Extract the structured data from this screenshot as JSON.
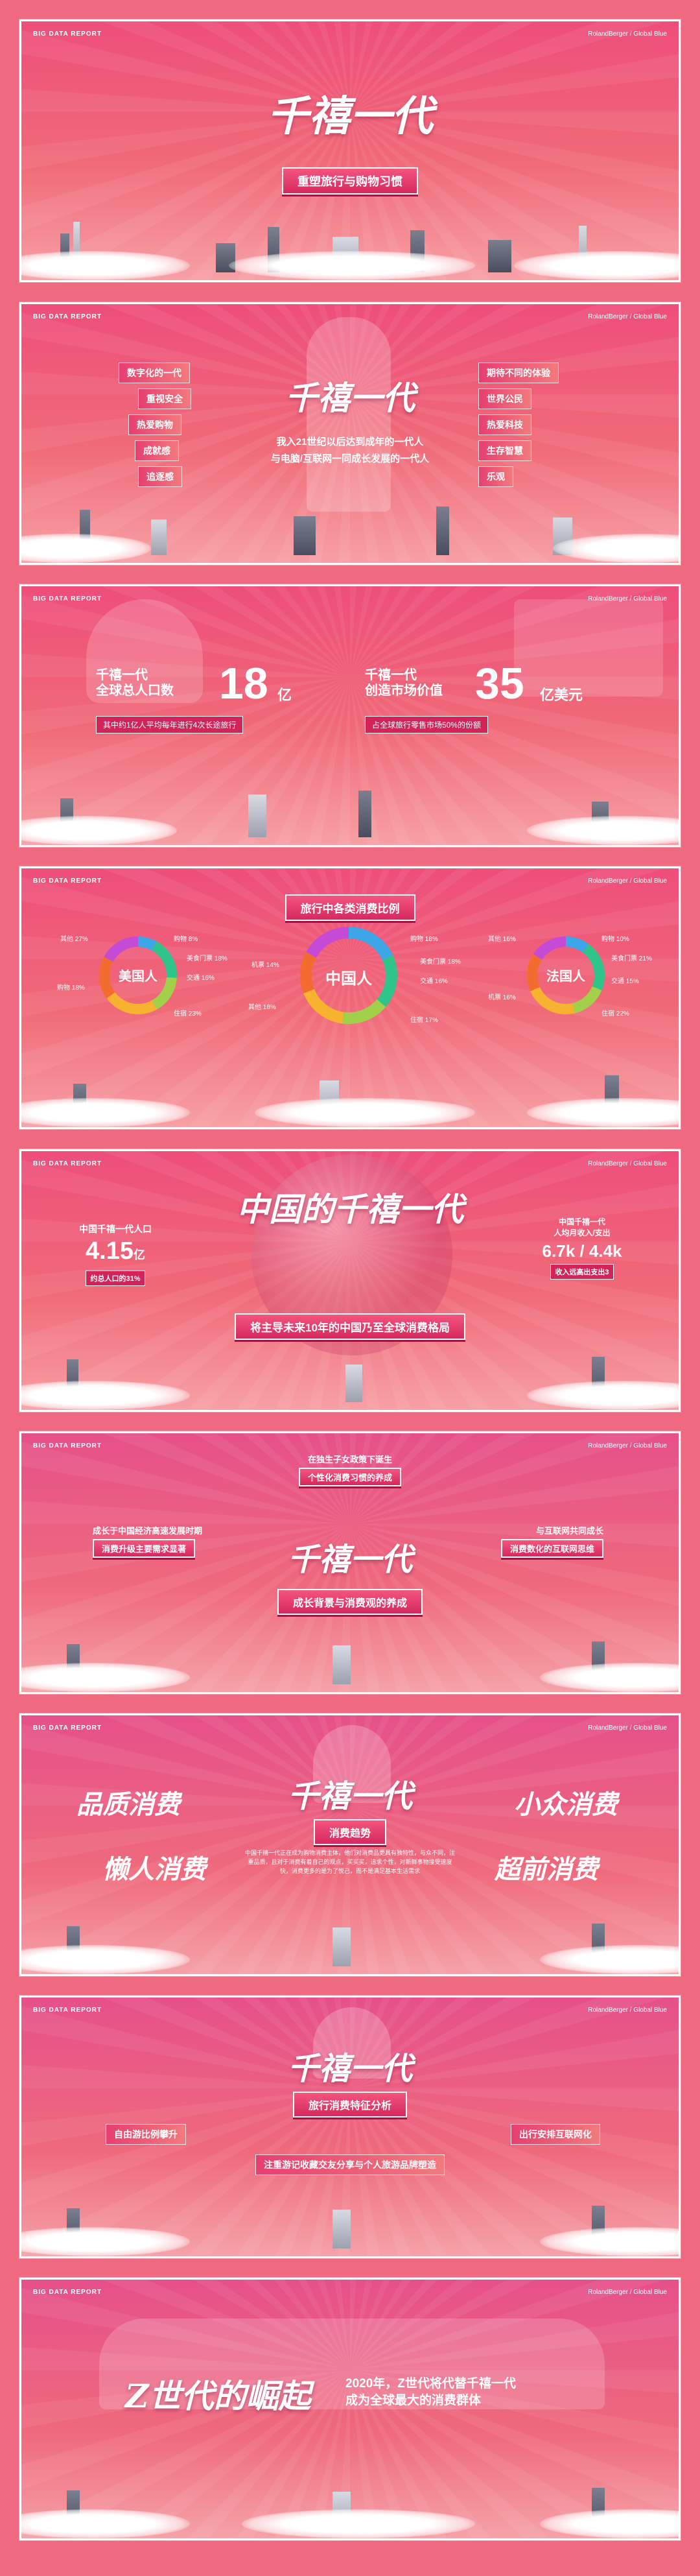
{
  "header": {
    "left": "BIG DATA REPORT",
    "right": "RolandBerger / Global Blue"
  },
  "p1": {
    "title": "千禧一代",
    "banner": "重塑旅行与购物习惯"
  },
  "p2": {
    "title": "千禧一代",
    "desc1": "我入21世纪以后达到成年的一代人",
    "desc2": "与电脑/互联网一同成长发展的一代人",
    "left_tags": [
      "数字化的一代",
      "重视安全",
      "热爱购物",
      "成就感",
      "追逐感"
    ],
    "right_tags": [
      "期待不同的体验",
      "世界公民",
      "热爱科技",
      "生存智慧",
      "乐观"
    ]
  },
  "p3": {
    "s1_head1": "千禧一代",
    "s1_head2": "全球总人口数",
    "s1_num": "18",
    "s1_unit": "亿",
    "s1_sub": "其中约1亿人平均每年进行4次长途旅行",
    "s2_head1": "千禧一代",
    "s2_head2": "创造市场价值",
    "s2_num": "35",
    "s2_unit": "亿美元",
    "s2_sub": "占全球旅行零售市场50%的份额"
  },
  "p4": {
    "title": "旅行中各类消费比例",
    "donuts": [
      {
        "name": "美国人",
        "labels": [
          "购物 8%",
          "美食门票 18%",
          "交通 16%",
          "住宿 23%",
          "购物 18%",
          "其他 27%"
        ]
      },
      {
        "name": "中国人",
        "labels": [
          "购物 18%",
          "美食门票 18%",
          "交通 16%",
          "住宿 17%",
          "机票 14%",
          "其他 18%"
        ]
      },
      {
        "name": "法国人",
        "labels": [
          "购物 10%",
          "美食门票 21%",
          "交通 15%",
          "住宿 22%",
          "机票 16%",
          "其他 16%"
        ]
      }
    ]
  },
  "p5": {
    "title": "中国的千禧一代",
    "left_head": "中国千禧一代人口",
    "left_num": "4.15",
    "left_unit": "亿",
    "left_sub": "约总人口的31%",
    "right_head1": "中国千禧一代",
    "right_head2": "人均月收入/支出",
    "right_num": "6.7k / 4.4k",
    "right_sub": "收入远高出支出3",
    "banner": "将主导未来10年的中国乃至全球消费格局"
  },
  "p6": {
    "title": "千禧一代",
    "top1": "在独生子女政策下诞生",
    "top2": "个性化消费习惯的养成",
    "left1": "成长于中国经济高速发展时期",
    "left2": "消费升级主要需求显著",
    "right1": "与互联网共同成长",
    "right2": "消费数化的互联网思维",
    "banner": "成长背景与消费观的养成"
  },
  "p7": {
    "title": "千禧一代",
    "banner": "消费趋势",
    "trends": [
      "品质消费",
      "懒人消费",
      "小众消费",
      "超前消费"
    ],
    "desc": "中国千禧一代正在成为购物消费主体，他们对消费品更具有独特性，与众不同，注重品质，且对于消费有着自己的观点，买买买，追求个性，对新鲜事物接受速度快，消费更多的是为了悦己，而不是满足基本生活需求"
  },
  "p8": {
    "title": "千禧一代",
    "banner": "旅行消费特征分析",
    "left": "自由游比例攀升",
    "right": "出行安排互联网化",
    "center": "注重游记收藏交友分享与个人旅游品牌塑造"
  },
  "p9": {
    "title": "Z世代的崛起",
    "line1": "2020年，Z世代将代替千禧一代",
    "line2": "成为全球最大的消费群体"
  },
  "colors": {
    "brand": "#ef5a7a",
    "accent": "#d6285f",
    "white": "#ffffff"
  }
}
